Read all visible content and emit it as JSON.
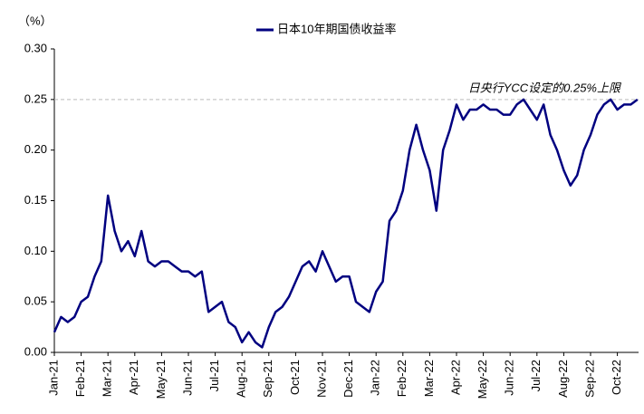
{
  "chart_data": {
    "type": "line",
    "y_unit_label": "（%）",
    "series": [
      {
        "name": "日本10年期国债收益率",
        "color": "#000080",
        "values": [
          0.02,
          0.035,
          0.03,
          0.035,
          0.05,
          0.055,
          0.075,
          0.09,
          0.155,
          0.12,
          0.1,
          0.11,
          0.095,
          0.12,
          0.09,
          0.085,
          0.09,
          0.09,
          0.085,
          0.08,
          0.08,
          0.075,
          0.08,
          0.04,
          0.045,
          0.05,
          0.03,
          0.025,
          0.01,
          0.02,
          0.01,
          0.005,
          0.025,
          0.04,
          0.045,
          0.055,
          0.07,
          0.085,
          0.09,
          0.08,
          0.1,
          0.085,
          0.07,
          0.075,
          0.075,
          0.05,
          0.045,
          0.04,
          0.06,
          0.07,
          0.13,
          0.14,
          0.16,
          0.2,
          0.225,
          0.2,
          0.18,
          0.14,
          0.2,
          0.22,
          0.245,
          0.23,
          0.24,
          0.24,
          0.245,
          0.24,
          0.24,
          0.235,
          0.235,
          0.245,
          0.25,
          0.24,
          0.23,
          0.245,
          0.215,
          0.2,
          0.18,
          0.165,
          0.175,
          0.2,
          0.215,
          0.235,
          0.245,
          0.25,
          0.24,
          0.245,
          0.245,
          0.25
        ]
      }
    ],
    "categories": [
      "Jan-21",
      null,
      null,
      null,
      "Feb-21",
      null,
      null,
      null,
      "Mar-21",
      null,
      null,
      null,
      "Apr-21",
      null,
      null,
      null,
      "May-21",
      null,
      null,
      null,
      "Jun-21",
      null,
      null,
      null,
      "Jul-21",
      null,
      null,
      null,
      "Aug-21",
      null,
      null,
      null,
      "Sep-21",
      null,
      null,
      null,
      "Oct-21",
      null,
      null,
      null,
      "Nov-21",
      null,
      null,
      null,
      "Dec-21",
      null,
      null,
      null,
      "Jan-22",
      null,
      null,
      null,
      "Feb-22",
      null,
      null,
      null,
      "Mar-22",
      null,
      null,
      null,
      "Apr-22",
      null,
      null,
      null,
      "May-22",
      null,
      null,
      null,
      "Jun-22",
      null,
      null,
      null,
      "Jul-22",
      null,
      null,
      null,
      "Aug-22",
      null,
      null,
      null,
      "Sep-22",
      null,
      null,
      null,
      "Oct-22",
      null,
      null,
      null
    ],
    "ylim": [
      0,
      0.3
    ],
    "yticks": [
      {
        "value": 0,
        "label": "0.00"
      },
      0.05,
      {
        "value": 0.1,
        "label": "0.10"
      },
      0.15,
      {
        "value": 0.2,
        "label": "0.20"
      },
      0.25,
      {
        "value": 0.3,
        "label": "0.30"
      }
    ],
    "reference_line": {
      "value": 0.25,
      "label": "日央行YCC设定的0.25%上限"
    }
  }
}
